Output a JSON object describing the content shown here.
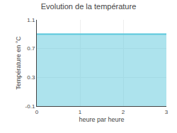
{
  "chart_data": {
    "type": "area",
    "title": "Evolution de la température",
    "xlabel": "heure par heure",
    "ylabel": "Température en °C",
    "x": [
      0,
      3
    ],
    "values": [
      0.9,
      0.9
    ],
    "color": "#5bc8dc",
    "xlim": [
      0,
      3
    ],
    "ylim": [
      -0.1,
      1.1
    ],
    "xticks": [
      0,
      1,
      2,
      3
    ],
    "yticks": [
      -0.1,
      0.3,
      0.7,
      1.1
    ],
    "grid": true
  }
}
